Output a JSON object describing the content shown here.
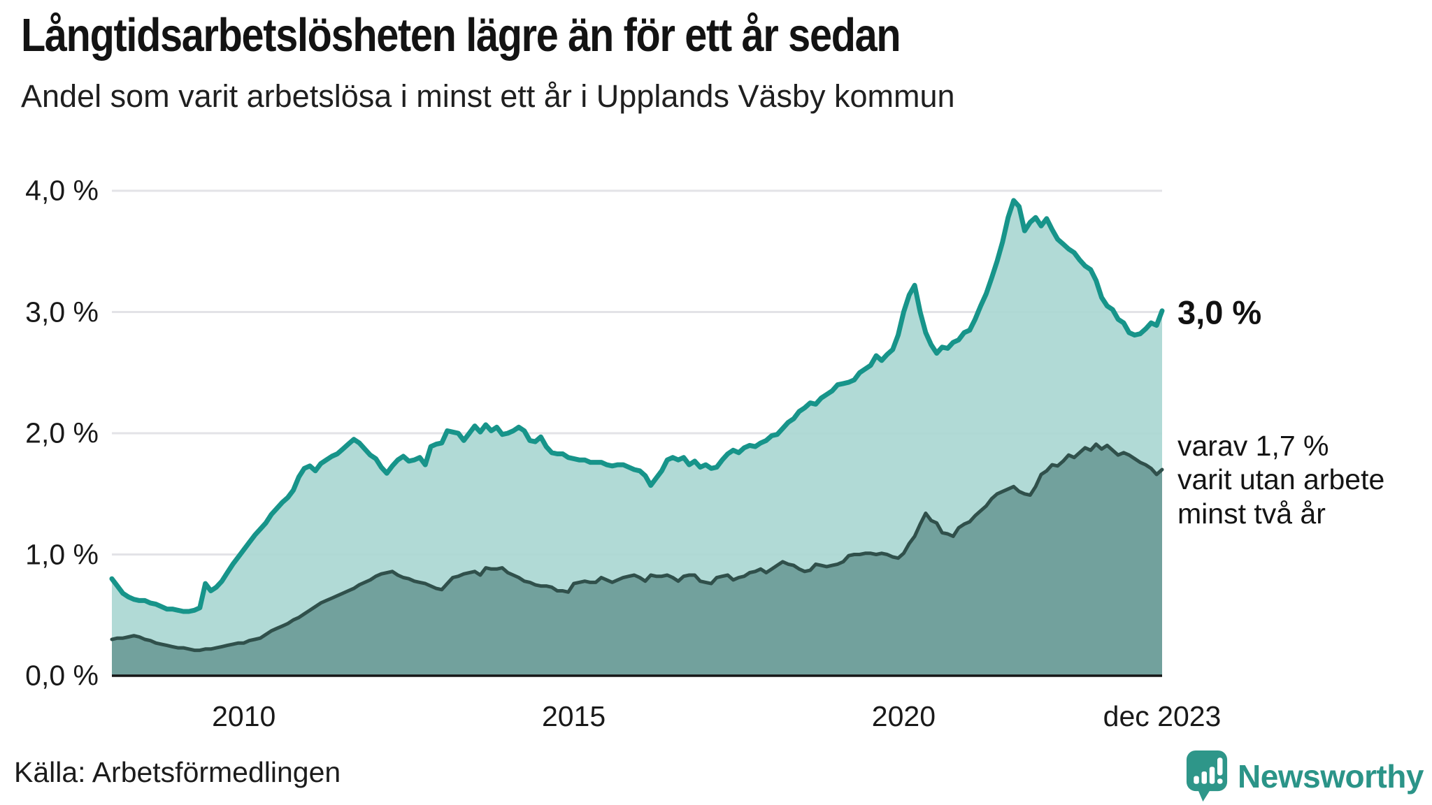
{
  "header": {
    "title": "Långtidsarbetslösheten lägre än för ett år sedan",
    "subtitle": "Andel som varit arbetslösa i minst ett år i Upplands Väsby kommun"
  },
  "annotations": {
    "latest_total_label": "3,0 %",
    "latest_two_year_lines": [
      "varav 1,7 %",
      "varit utan arbete",
      "minst två år"
    ]
  },
  "footer": {
    "source": "Källa: Arbetsförmedlingen",
    "logo_text": "Newsworthy",
    "logo_icon": "newsworthy-bubble-chart-icon"
  },
  "colors": {
    "series1_line": "#17948a",
    "series1_fill": "#a9d6d1",
    "series2_line": "#30504b",
    "series2_fill": "#6f9e9a",
    "gridline": "#e3e3e7",
    "axis": "#161616",
    "brand_teal": "#2e9689"
  },
  "chart_data": {
    "type": "area",
    "title": "Långtidsarbetslösheten lägre än för ett år sedan",
    "subtitle": "Andel som varit arbetslösa i minst ett år i Upplands Väsby kommun",
    "x_start": "2008-01",
    "x_end": "2023-12",
    "x_unit": "month",
    "ylim": [
      0,
      4.0
    ],
    "grid": true,
    "yticks": [
      {
        "value": 0.0,
        "label": "0,0 %"
      },
      {
        "value": 1.0,
        "label": "1,0 %"
      },
      {
        "value": 2.0,
        "label": "2,0 %"
      },
      {
        "value": 3.0,
        "label": "3,0 %"
      },
      {
        "value": 4.0,
        "label": "4,0 %"
      }
    ],
    "xticks": [
      {
        "month_index": 24,
        "label": "2010"
      },
      {
        "month_index": 84,
        "label": "2015"
      },
      {
        "month_index": 144,
        "label": "2020"
      },
      {
        "month_index": 191,
        "label": "dec 2023"
      }
    ],
    "series": [
      {
        "name": "Arbetslösa minst ett år",
        "line_color": "#17948a",
        "fill_color": "#a9d6d1",
        "line_width": 7,
        "latest_value": 3.0,
        "values": [
          0.8,
          0.74,
          0.68,
          0.65,
          0.63,
          0.62,
          0.62,
          0.6,
          0.59,
          0.57,
          0.55,
          0.55,
          0.54,
          0.53,
          0.53,
          0.54,
          0.56,
          0.76,
          0.7,
          0.73,
          0.78,
          0.85,
          0.92,
          0.98,
          1.04,
          1.1,
          1.16,
          1.21,
          1.26,
          1.33,
          1.38,
          1.43,
          1.47,
          1.53,
          1.64,
          1.71,
          1.73,
          1.69,
          1.75,
          1.78,
          1.81,
          1.83,
          1.87,
          1.91,
          1.95,
          1.92,
          1.87,
          1.82,
          1.79,
          1.72,
          1.67,
          1.73,
          1.78,
          1.81,
          1.77,
          1.78,
          1.8,
          1.74,
          1.89,
          1.91,
          1.92,
          2.02,
          2.01,
          2.0,
          1.94,
          2.0,
          2.06,
          2.01,
          2.07,
          2.02,
          2.05,
          1.99,
          2.0,
          2.02,
          2.05,
          2.02,
          1.94,
          1.93,
          1.97,
          1.89,
          1.84,
          1.83,
          1.83,
          1.8,
          1.79,
          1.78,
          1.78,
          1.76,
          1.76,
          1.76,
          1.74,
          1.73,
          1.74,
          1.74,
          1.72,
          1.7,
          1.69,
          1.65,
          1.57,
          1.63,
          1.69,
          1.78,
          1.8,
          1.78,
          1.8,
          1.74,
          1.77,
          1.72,
          1.74,
          1.71,
          1.72,
          1.78,
          1.83,
          1.86,
          1.84,
          1.88,
          1.9,
          1.89,
          1.92,
          1.94,
          1.98,
          1.99,
          2.04,
          2.09,
          2.12,
          2.18,
          2.21,
          2.25,
          2.24,
          2.29,
          2.32,
          2.35,
          2.4,
          2.41,
          2.42,
          2.44,
          2.5,
          2.53,
          2.56,
          2.64,
          2.6,
          2.65,
          2.69,
          2.81,
          3.0,
          3.14,
          3.22,
          3.0,
          2.83,
          2.73,
          2.66,
          2.71,
          2.7,
          2.75,
          2.77,
          2.83,
          2.85,
          2.94,
          3.05,
          3.15,
          3.28,
          3.42,
          3.58,
          3.78,
          3.92,
          3.87,
          3.67,
          3.74,
          3.78,
          3.71,
          3.77,
          3.68,
          3.6,
          3.56,
          3.52,
          3.49,
          3.43,
          3.38,
          3.35,
          3.26,
          3.12,
          3.05,
          3.02,
          2.94,
          2.91,
          2.83,
          2.81,
          2.82,
          2.86,
          2.91,
          2.89,
          3.01
        ]
      },
      {
        "name": "varav arbetslösa minst två år",
        "line_color": "#30504b",
        "fill_color": "#6f9e9a",
        "line_width": 5,
        "latest_value": 1.7,
        "values": [
          0.3,
          0.31,
          0.31,
          0.32,
          0.33,
          0.32,
          0.3,
          0.29,
          0.27,
          0.26,
          0.25,
          0.24,
          0.23,
          0.23,
          0.22,
          0.21,
          0.21,
          0.22,
          0.22,
          0.23,
          0.24,
          0.25,
          0.26,
          0.27,
          0.27,
          0.29,
          0.3,
          0.31,
          0.34,
          0.37,
          0.39,
          0.41,
          0.43,
          0.46,
          0.48,
          0.51,
          0.54,
          0.57,
          0.6,
          0.62,
          0.64,
          0.66,
          0.68,
          0.7,
          0.72,
          0.75,
          0.77,
          0.79,
          0.82,
          0.84,
          0.85,
          0.86,
          0.83,
          0.81,
          0.8,
          0.78,
          0.77,
          0.76,
          0.74,
          0.72,
          0.71,
          0.76,
          0.81,
          0.82,
          0.84,
          0.85,
          0.86,
          0.83,
          0.89,
          0.88,
          0.88,
          0.89,
          0.85,
          0.83,
          0.81,
          0.78,
          0.77,
          0.75,
          0.74,
          0.74,
          0.73,
          0.7,
          0.7,
          0.69,
          0.76,
          0.77,
          0.78,
          0.77,
          0.77,
          0.81,
          0.79,
          0.77,
          0.79,
          0.81,
          0.82,
          0.83,
          0.81,
          0.78,
          0.83,
          0.82,
          0.82,
          0.83,
          0.81,
          0.78,
          0.82,
          0.83,
          0.83,
          0.78,
          0.77,
          0.76,
          0.81,
          0.82,
          0.83,
          0.79,
          0.81,
          0.82,
          0.85,
          0.86,
          0.88,
          0.85,
          0.88,
          0.91,
          0.94,
          0.92,
          0.91,
          0.88,
          0.86,
          0.87,
          0.92,
          0.91,
          0.9,
          0.91,
          0.92,
          0.94,
          0.99,
          1.0,
          1.0,
          1.01,
          1.01,
          1.0,
          1.01,
          1.0,
          0.98,
          0.97,
          1.01,
          1.09,
          1.15,
          1.25,
          1.34,
          1.28,
          1.26,
          1.18,
          1.17,
          1.15,
          1.22,
          1.25,
          1.27,
          1.32,
          1.36,
          1.4,
          1.46,
          1.5,
          1.52,
          1.54,
          1.56,
          1.52,
          1.5,
          1.49,
          1.56,
          1.66,
          1.69,
          1.74,
          1.73,
          1.77,
          1.82,
          1.8,
          1.84,
          1.88,
          1.86,
          1.91,
          1.87,
          1.9,
          1.86,
          1.82,
          1.84,
          1.82,
          1.79,
          1.76,
          1.74,
          1.71,
          1.66,
          1.7
        ]
      }
    ],
    "legend_position": "right-annotations"
  }
}
